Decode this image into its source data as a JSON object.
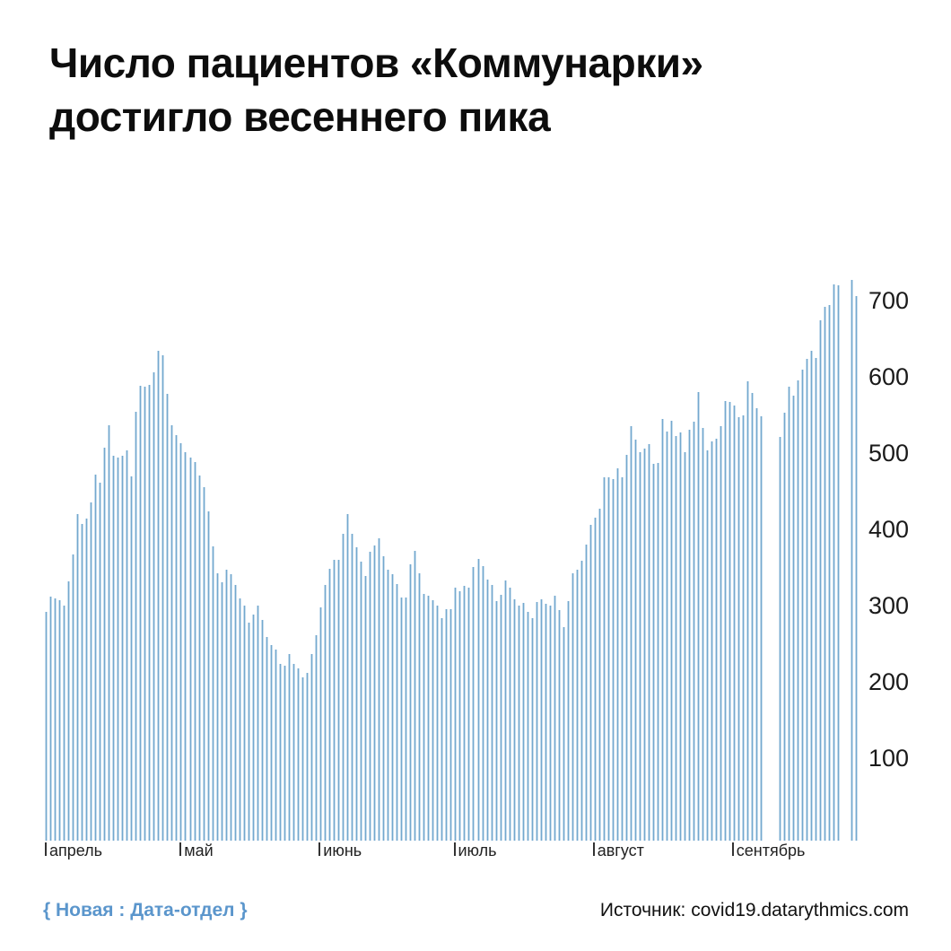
{
  "title": {
    "line1": "Число пациентов «Коммунарки»",
    "line2": "достигло весеннего пика"
  },
  "footer": {
    "brand": "{ Новая : Дата-отдел }",
    "source": "Источник: covid19.datarythmics.com"
  },
  "colors": {
    "bar_core": "#73a8ce",
    "bar_edge": "#c6dcec",
    "brand_blue": "#5b96cc",
    "text": "#1a1a1a"
  },
  "chart_data": {
    "type": "bar",
    "title": "Число пациентов «Коммунарки» достигло весеннего пика",
    "xlabel": "",
    "ylabel": "",
    "legend": null,
    "grid": false,
    "y_ticks": [
      100,
      200,
      300,
      400,
      500,
      600,
      700
    ],
    "ylim": [
      0,
      740
    ],
    "y_axis_side": "right",
    "categories_months": [
      "апрель",
      "май",
      "июнь",
      "июль",
      "август",
      "сентябрь"
    ],
    "month_start_indices": [
      0,
      30,
      61,
      91,
      122,
      153
    ],
    "spring_peak_value": 643,
    "autumn_peak_value": 735,
    "values": [
      300,
      320,
      318,
      315,
      308,
      340,
      375,
      428,
      415,
      422,
      443,
      480,
      469,
      515,
      545,
      505,
      502,
      505,
      512,
      478,
      562,
      597,
      595,
      598,
      614,
      643,
      636,
      586,
      545,
      532,
      521,
      510,
      502,
      497,
      479,
      463,
      432,
      386,
      351,
      339,
      355,
      349,
      335,
      318,
      308,
      286,
      296,
      308,
      290,
      267,
      257,
      251,
      232,
      229,
      245,
      232,
      226,
      214,
      220,
      245,
      270,
      306,
      335,
      357,
      368,
      368,
      402,
      428,
      402,
      385,
      366,
      347,
      379,
      387,
      397,
      373,
      355,
      349,
      337,
      319,
      319,
      362,
      380,
      351,
      324,
      321,
      315,
      308,
      292,
      304,
      304,
      332,
      327,
      334,
      332,
      359,
      369,
      360,
      342,
      335,
      314,
      322,
      341,
      332,
      316,
      308,
      312,
      300,
      292,
      313,
      316,
      311,
      308,
      321,
      302,
      280,
      314,
      351,
      355,
      367,
      388,
      414,
      424,
      435,
      476,
      476,
      474,
      488,
      476,
      506,
      543,
      526,
      510,
      514,
      520,
      494,
      495,
      553,
      537,
      551,
      531,
      535,
      510,
      539,
      549,
      588,
      541,
      512,
      524,
      527,
      543,
      576,
      575,
      571,
      555,
      558,
      602,
      587,
      567,
      557,
      null,
      null,
      null,
      530,
      561,
      595,
      583,
      604,
      618,
      632,
      642,
      633,
      682,
      700,
      702,
      729,
      728,
      null,
      null,
      735,
      714
    ]
  }
}
